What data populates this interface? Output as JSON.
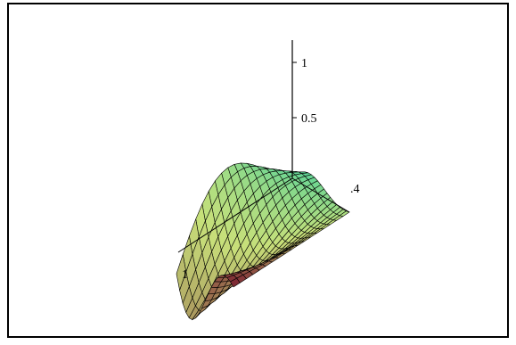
{
  "chart_data": {
    "type": "surface",
    "view": "3d-wireframe",
    "title": "",
    "xlabel": "",
    "ylabel": "",
    "zlabel": "",
    "z_tick_labels": [
      "1",
      "0.5"
    ],
    "x_tick_labels": [
      "1"
    ],
    "y_tick_labels": [
      ".4"
    ],
    "zlim": [
      0,
      1
    ],
    "grid": false,
    "legend": false,
    "colors": {
      "low": "#7a2030",
      "mid": "#c8e07a",
      "high": "#3ad0a0",
      "wire": "#000000"
    }
  }
}
